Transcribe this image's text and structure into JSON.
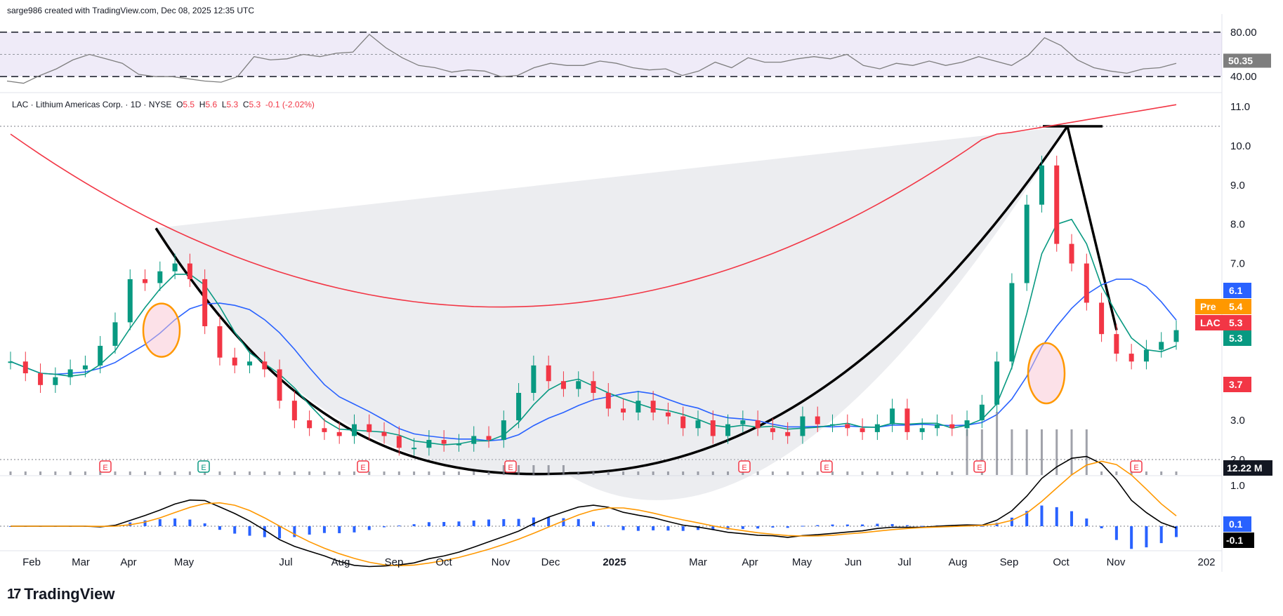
{
  "header": {
    "credit": "sarge986 created with TradingView.com, Dec 08, 2025 12:35 UTC"
  },
  "legend": {
    "symbol": "LAC · Lithium Americas Corp. · 1D · NYSE",
    "o_label": "O",
    "o": "5.5",
    "h_label": "H",
    "h": "5.6",
    "l_label": "L",
    "l": "5.3",
    "c_label": "C",
    "c": "5.3",
    "change": "-0.1 (-2.02%)"
  },
  "brand": {
    "name": "TradingView",
    "icon": "tradingview-logo-icon"
  },
  "colors": {
    "up": "#089981",
    "down": "#f23645",
    "sma_red": "#f23645",
    "sma_blue": "#2962ff",
    "ema_green": "#089981",
    "macd_orange": "#ff9800",
    "rsi_line": "#7e7e7e",
    "rsi_band": "#7e57c2",
    "pre_tag": "#ff9800"
  },
  "chart_data": [
    {
      "type": "line",
      "panel": "RSI",
      "series": [
        {
          "values": [
            36,
            34,
            41,
            47,
            55,
            60,
            56,
            52,
            42,
            40,
            40,
            38,
            36,
            35,
            40,
            58,
            55,
            56,
            60,
            58,
            61,
            62,
            78,
            66,
            57,
            50,
            48,
            44,
            46,
            45,
            40,
            41,
            48,
            52,
            50,
            50,
            54,
            52,
            48,
            46,
            47,
            41,
            45,
            53,
            48,
            57,
            53,
            53,
            56,
            58,
            56,
            60,
            50,
            47,
            52,
            50,
            54,
            50,
            53,
            58,
            54,
            50,
            59,
            75,
            68,
            55,
            48,
            45,
            43,
            47,
            48,
            52
          ]
        }
      ],
      "ylim": [
        30,
        90
      ],
      "yticks": [
        40,
        80
      ],
      "ytick_labels": [
        "40.00",
        "80.00"
      ],
      "bands": [
        40,
        60,
        80
      ],
      "last_value": "50.35"
    },
    {
      "type": "candlestick",
      "panel": "price",
      "x_labels": [
        "Feb",
        "Mar",
        "Apr",
        "May",
        "Jul",
        "Aug",
        "Sep",
        "Oct",
        "Nov",
        "Dec",
        "2025",
        "Mar",
        "Apr",
        "May",
        "Jun",
        "Jul",
        "Aug",
        "Sep",
        "Oct",
        "Nov",
        "202"
      ],
      "ylim": [
        1.7,
        11.3
      ],
      "yticks": [
        2,
        3,
        4,
        5,
        6,
        7,
        8,
        9,
        10,
        11
      ],
      "ytick_labels": [
        "2.0",
        "3.0",
        "4.0",
        "5.0",
        "6.0",
        "7.0",
        "8.0",
        "9.0",
        "10.0",
        "11.0"
      ],
      "closes": [
        4.5,
        4.2,
        3.9,
        4.1,
        4.3,
        4.4,
        4.9,
        5.5,
        6.6,
        6.5,
        6.8,
        7.0,
        6.6,
        5.4,
        4.6,
        4.4,
        4.5,
        4.3,
        3.5,
        3.0,
        2.8,
        2.7,
        2.6,
        2.9,
        2.7,
        2.6,
        2.3,
        2.3,
        2.5,
        2.4,
        2.4,
        2.6,
        2.5,
        3.0,
        3.7,
        4.4,
        4.0,
        3.8,
        4.0,
        3.7,
        3.3,
        3.2,
        3.5,
        3.2,
        3.1,
        2.8,
        3.0,
        2.6,
        2.9,
        3.0,
        2.8,
        2.7,
        2.6,
        3.1,
        2.9,
        2.9,
        2.8,
        2.7,
        2.9,
        3.3,
        2.7,
        2.8,
        2.9,
        2.8,
        3.0,
        3.4,
        4.5,
        6.5,
        8.5,
        9.5,
        7.5,
        7.0,
        6.0,
        5.2,
        4.7,
        4.5,
        4.8,
        5.0,
        5.3
      ],
      "annotations": {
        "earnings_marker": "E",
        "dividend_marker": "E",
        "cup_line": "cup and handle curve",
        "peak_level": 10.5
      },
      "price_tags": [
        {
          "label": "",
          "value": "6.1",
          "color": "#2962ff"
        },
        {
          "label": "Pre",
          "value": "5.4",
          "color": "#ff9800"
        },
        {
          "label": "LAC",
          "value": "5.3",
          "color": "#f23645"
        },
        {
          "label": "",
          "value": "5.3",
          "color": "#089981"
        },
        {
          "label": "",
          "value": "3.7",
          "color": "#f23645"
        }
      ],
      "volume_last": "12.22 M"
    },
    {
      "type": "line",
      "panel": "MACD",
      "yticks": [
        1.0
      ],
      "ytick_labels": [
        "1.0"
      ],
      "ylim": [
        -0.4,
        1.4
      ],
      "last_macd": "0.1",
      "last_signal": "-0.1"
    }
  ]
}
